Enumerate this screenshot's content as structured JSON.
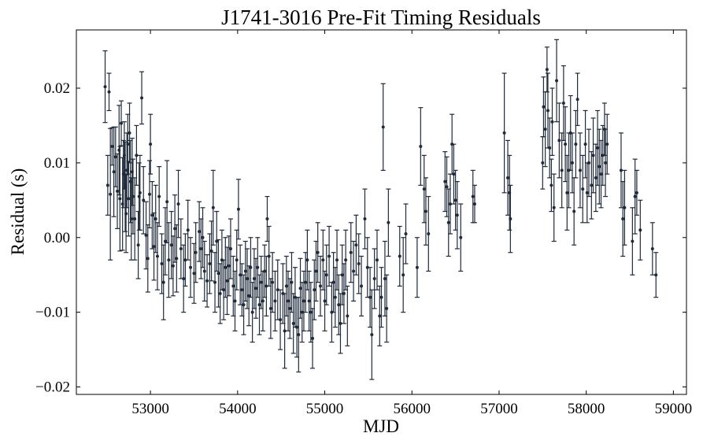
{
  "chart_data": {
    "type": "scatter",
    "title": "J1741-3016 Pre-Fit Timing Residuals",
    "xlabel": "MJD",
    "ylabel": "Residual (s)",
    "xlim": [
      52150,
      59150
    ],
    "ylim": [
      -0.021,
      0.0278
    ],
    "xticks": [
      53000,
      54000,
      55000,
      56000,
      57000,
      58000,
      59000
    ],
    "yticks": [
      -0.02,
      -0.01,
      0.0,
      0.01,
      0.02
    ],
    "ytick_labels": [
      "−0.02",
      "−0.01",
      "0.00",
      "0.01",
      "0.02"
    ],
    "grid": false,
    "legend": "none",
    "colors": {
      "marker": "#1f2a3a",
      "errorbar": "#1f2a3a"
    },
    "series": [
      {
        "points": [
          [
            52480,
            0.0202,
            0.0048
          ],
          [
            52510,
            0.007,
            0.004
          ],
          [
            52525,
            0.0195,
            0.0025
          ],
          [
            52540,
            0.0058,
            0.0088
          ],
          [
            52560,
            0.0122,
            0.0025
          ],
          [
            52580,
            0.0088,
            0.006
          ],
          [
            52600,
            0.0108,
            0.004
          ],
          [
            52620,
            0.0062,
            0.005
          ],
          [
            52640,
            0.0117,
            0.006
          ],
          [
            52650,
            0.0052,
            0.007
          ],
          [
            52665,
            0.0153,
            0.003
          ],
          [
            52680,
            0.0045,
            0.0062
          ],
          [
            52690,
            0.0085,
            0.0045
          ],
          [
            52700,
            0.011,
            0.0045
          ],
          [
            52710,
            0.0068,
            0.006
          ],
          [
            52720,
            0.0032,
            0.0052
          ],
          [
            52730,
            0.009,
            0.005
          ],
          [
            52740,
            0.0125,
            0.004
          ],
          [
            52750,
            0.0052,
            0.005
          ],
          [
            52760,
            0.014,
            0.004
          ],
          [
            52770,
            0.0075,
            0.0055
          ],
          [
            52780,
            0.0025,
            0.0055
          ],
          [
            52790,
            0.0088,
            0.0045
          ],
          [
            52800,
            0.0055,
            0.005
          ],
          [
            52820,
            0.0025,
            0.0055
          ],
          [
            52840,
            0.011,
            0.004
          ],
          [
            52860,
            -0.001,
            0.0045
          ],
          [
            52870,
            0.0055,
            0.0045
          ],
          [
            52880,
            0.006,
            0.005
          ],
          [
            52900,
            0.0187,
            0.0035
          ],
          [
            52920,
            0.005,
            0.0045
          ],
          [
            52950,
            0.0003,
            0.0045
          ],
          [
            52970,
            -0.0028,
            0.0045
          ],
          [
            52990,
            0.0058,
            0.0045
          ],
          [
            53000,
            0.0125,
            0.004
          ],
          [
            53020,
            0.003,
            0.0045
          ],
          [
            53040,
            -0.0012,
            0.0045
          ],
          [
            53060,
            0.0025,
            0.0045
          ],
          [
            53080,
            -0.0025,
            0.0045
          ],
          [
            53100,
            0.0055,
            0.004
          ],
          [
            53130,
            -0.0035,
            0.004
          ],
          [
            53150,
            -0.006,
            0.005
          ],
          [
            53170,
            -0.0005,
            0.0045
          ],
          [
            53190,
            0.0048,
            0.0055
          ],
          [
            53210,
            -0.003,
            0.005
          ],
          [
            53240,
            -0.001,
            0.0045
          ],
          [
            53260,
            -0.0038,
            0.004
          ],
          [
            53280,
            0.0012,
            0.0045
          ],
          [
            53300,
            -0.0028,
            0.0045
          ],
          [
            53320,
            0.0045,
            0.0045
          ],
          [
            53350,
            -0.0015,
            0.004
          ],
          [
            53380,
            -0.0055,
            0.0045
          ],
          [
            53400,
            -0.003,
            0.0035
          ],
          [
            53430,
            0.001,
            0.004
          ],
          [
            53460,
            -0.004,
            0.004
          ],
          [
            53500,
            -0.0048,
            0.004
          ],
          [
            53520,
            -0.002,
            0.004
          ],
          [
            53560,
            0.0008,
            0.004
          ],
          [
            53580,
            -0.0015,
            0.004
          ],
          [
            53600,
            0.0,
            0.004
          ],
          [
            53620,
            -0.0045,
            0.004
          ],
          [
            53650,
            -0.0058,
            0.0035
          ],
          [
            53680,
            -0.0035,
            0.004
          ],
          [
            53700,
            -0.0018,
            0.004
          ],
          [
            53720,
            0.004,
            0.005
          ],
          [
            53740,
            -0.006,
            0.004
          ],
          [
            53760,
            -0.0005,
            0.004
          ],
          [
            53780,
            -0.0048,
            0.0045
          ],
          [
            53800,
            -0.0075,
            0.004
          ],
          [
            53820,
            -0.003,
            0.004
          ],
          [
            53840,
            -0.007,
            0.004
          ],
          [
            53860,
            -0.004,
            0.004
          ],
          [
            53880,
            -0.0058,
            0.0045
          ],
          [
            53900,
            -0.0038,
            0.004
          ],
          [
            53920,
            -0.0015,
            0.004
          ],
          [
            53950,
            -0.0065,
            0.004
          ],
          [
            53970,
            -0.0085,
            0.004
          ],
          [
            53990,
            -0.003,
            0.004
          ],
          [
            54010,
            0.0038,
            0.004
          ],
          [
            54030,
            -0.005,
            0.004
          ],
          [
            54050,
            -0.007,
            0.0035
          ],
          [
            54070,
            -0.009,
            0.004
          ],
          [
            54090,
            -0.0045,
            0.004
          ],
          [
            54110,
            -0.0055,
            0.004
          ],
          [
            54130,
            -0.0078,
            0.004
          ],
          [
            54150,
            -0.004,
            0.004
          ],
          [
            54170,
            -0.01,
            0.004
          ],
          [
            54190,
            -0.0055,
            0.004
          ],
          [
            54210,
            -0.0068,
            0.004
          ],
          [
            54230,
            -0.004,
            0.004
          ],
          [
            54250,
            -0.009,
            0.004
          ],
          [
            54270,
            -0.006,
            0.0035
          ],
          [
            54290,
            -0.0085,
            0.004
          ],
          [
            54310,
            -0.0045,
            0.0035
          ],
          [
            54330,
            -0.0065,
            0.004
          ],
          [
            54340,
            0.0025,
            0.003
          ],
          [
            54360,
            -0.0025,
            0.004
          ],
          [
            54380,
            -0.0095,
            0.004
          ],
          [
            54400,
            -0.006,
            0.004
          ],
          [
            54430,
            -0.0085,
            0.004
          ],
          [
            54460,
            -0.007,
            0.004
          ],
          [
            54490,
            -0.011,
            0.004
          ],
          [
            54520,
            -0.0075,
            0.004
          ],
          [
            54540,
            -0.0125,
            0.005
          ],
          [
            54560,
            -0.0065,
            0.004
          ],
          [
            54580,
            -0.0085,
            0.004
          ],
          [
            54600,
            -0.0095,
            0.004
          ],
          [
            54620,
            -0.006,
            0.004
          ],
          [
            54640,
            -0.0115,
            0.004
          ],
          [
            54660,
            -0.008,
            0.004
          ],
          [
            54680,
            -0.012,
            0.004
          ],
          [
            54700,
            -0.013,
            0.005
          ],
          [
            54720,
            -0.0068,
            0.004
          ],
          [
            54740,
            -0.01,
            0.004
          ],
          [
            54760,
            -0.0085,
            0.004
          ],
          [
            54780,
            -0.006,
            0.004
          ],
          [
            54800,
            -0.003,
            0.004
          ],
          [
            54820,
            -0.0085,
            0.004
          ],
          [
            54840,
            -0.01,
            0.004
          ],
          [
            54860,
            -0.0135,
            0.004
          ],
          [
            54880,
            -0.007,
            0.004
          ],
          [
            54900,
            -0.0045,
            0.004
          ],
          [
            54920,
            -0.002,
            0.004
          ],
          [
            54950,
            -0.0065,
            0.004
          ],
          [
            54980,
            -0.003,
            0.004
          ],
          [
            55000,
            -0.0085,
            0.004
          ],
          [
            55020,
            -0.005,
            0.004
          ],
          [
            55050,
            -0.0025,
            0.004
          ],
          [
            55080,
            -0.01,
            0.004
          ],
          [
            55100,
            -0.006,
            0.004
          ],
          [
            55120,
            -0.008,
            0.004
          ],
          [
            55140,
            -0.003,
            0.004
          ],
          [
            55160,
            -0.009,
            0.004
          ],
          [
            55180,
            -0.0115,
            0.004
          ],
          [
            55200,
            -0.005,
            0.004
          ],
          [
            55220,
            -0.0075,
            0.004
          ],
          [
            55240,
            -0.003,
            0.004
          ],
          [
            55260,
            -0.0105,
            0.004
          ],
          [
            55300,
            -0.002,
            0.004
          ],
          [
            55330,
            -0.0045,
            0.004
          ],
          [
            55360,
            -0.001,
            0.004
          ],
          [
            55390,
            -0.0035,
            0.004
          ],
          [
            55420,
            -0.0065,
            0.004
          ],
          [
            55460,
            0.0025,
            0.004
          ],
          [
            55490,
            -0.004,
            0.004
          ],
          [
            55520,
            -0.008,
            0.004
          ],
          [
            55540,
            -0.013,
            0.006
          ],
          [
            55570,
            -0.0055,
            0.004
          ],
          [
            55600,
            -0.003,
            0.004
          ],
          [
            55630,
            -0.0105,
            0.004
          ],
          [
            55650,
            -0.008,
            0.004
          ],
          [
            55670,
            0.0148,
            0.0058
          ],
          [
            55690,
            -0.0055,
            0.005
          ],
          [
            55710,
            -0.0095,
            0.0045
          ],
          [
            55730,
            0.002,
            0.0045
          ],
          [
            55860,
            -0.0025,
            0.004
          ],
          [
            55900,
            -0.005,
            0.005
          ],
          [
            55930,
            0.0005,
            0.004
          ],
          [
            56060,
            -0.004,
            0.004
          ],
          [
            56100,
            0.0122,
            0.0052
          ],
          [
            56140,
            0.0065,
            0.0045
          ],
          [
            56160,
            0.0035,
            0.0045
          ],
          [
            56190,
            0.0005,
            0.005
          ],
          [
            56380,
            0.0075,
            0.004
          ],
          [
            56400,
            0.0068,
            0.004
          ],
          [
            56420,
            0.002,
            0.0045
          ],
          [
            56440,
            0.0045,
            0.004
          ],
          [
            56460,
            0.0125,
            0.004
          ],
          [
            56480,
            0.0085,
            0.004
          ],
          [
            56500,
            0.005,
            0.004
          ],
          [
            56520,
            0.003,
            0.0045
          ],
          [
            56560,
            0.0,
            0.0045
          ],
          [
            56700,
            0.0055,
            0.0035
          ],
          [
            56720,
            0.0045,
            0.0025
          ],
          [
            57060,
            0.014,
            0.008
          ],
          [
            57100,
            0.008,
            0.005
          ],
          [
            57120,
            0.006,
            0.005
          ],
          [
            57130,
            0.0025,
            0.0045
          ],
          [
            57500,
            0.01,
            0.0035
          ],
          [
            57510,
            0.0175,
            0.004
          ],
          [
            57530,
            0.0145,
            0.005
          ],
          [
            57550,
            0.0225,
            0.003
          ],
          [
            57560,
            0.017,
            0.005
          ],
          [
            57580,
            0.012,
            0.004
          ],
          [
            57600,
            0.007,
            0.0035
          ],
          [
            57610,
            0.0155,
            0.0045
          ],
          [
            57630,
            0.004,
            0.0045
          ],
          [
            57660,
            0.021,
            0.0055
          ],
          [
            57690,
            0.013,
            0.005
          ],
          [
            57720,
            0.009,
            0.005
          ],
          [
            57740,
            0.018,
            0.005
          ],
          [
            57760,
            0.0125,
            0.005
          ],
          [
            57780,
            0.006,
            0.005
          ],
          [
            57800,
            0.009,
            0.005
          ],
          [
            57820,
            0.014,
            0.005
          ],
          [
            57840,
            0.01,
            0.004
          ],
          [
            57860,
            0.0035,
            0.0045
          ],
          [
            57880,
            0.0125,
            0.0045
          ],
          [
            57900,
            0.0185,
            0.0035
          ],
          [
            57930,
            0.009,
            0.005
          ],
          [
            57960,
            0.0065,
            0.0045
          ],
          [
            57990,
            0.0125,
            0.0045
          ],
          [
            58010,
            0.006,
            0.004
          ],
          [
            58030,
            0.01,
            0.0045
          ],
          [
            58060,
            0.007,
            0.0045
          ],
          [
            58080,
            0.011,
            0.005
          ],
          [
            58110,
            0.008,
            0.0045
          ],
          [
            58130,
            0.012,
            0.005
          ],
          [
            58150,
            0.0095,
            0.005
          ],
          [
            58170,
            0.0085,
            0.0045
          ],
          [
            58190,
            0.011,
            0.004
          ],
          [
            58210,
            0.0145,
            0.0035
          ],
          [
            58220,
            0.01,
            0.0045
          ],
          [
            58240,
            0.0125,
            0.004
          ],
          [
            58400,
            0.009,
            0.005
          ],
          [
            58420,
            0.0025,
            0.005
          ],
          [
            58440,
            0.004,
            0.005
          ],
          [
            58530,
            -0.0005,
            0.0045
          ],
          [
            58560,
            0.0055,
            0.005
          ],
          [
            58580,
            0.006,
            0.003
          ],
          [
            58620,
            0.001,
            0.004
          ],
          [
            58760,
            -0.0015,
            0.0035
          ],
          [
            58800,
            -0.005,
            0.003
          ]
        ]
      }
    ]
  }
}
